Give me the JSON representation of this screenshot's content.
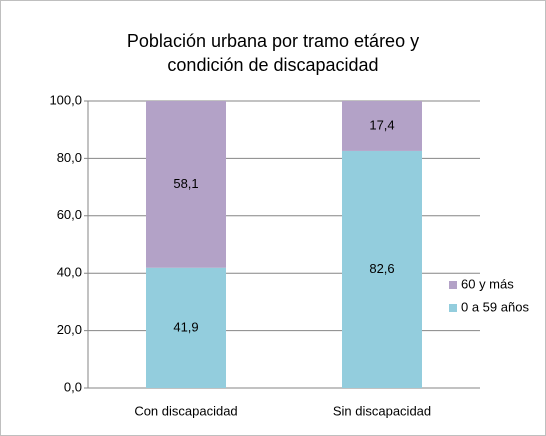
{
  "chart_data": {
    "type": "stacked_bar",
    "title": [
      "Población urbana por tramo etáreo y",
      "condición de discapacidad"
    ],
    "categories": [
      "Con discapacidad",
      "Sin discapacidad"
    ],
    "series": [
      {
        "name": "0 a 59 años",
        "color": "#93cddd",
        "values": [
          41.9,
          82.6
        ],
        "value_labels": [
          "41,9",
          "82,6"
        ]
      },
      {
        "name": "60 y más",
        "color": "#b3a2c7",
        "values": [
          58.1,
          17.4
        ],
        "value_labels": [
          "58,1",
          "17,4"
        ]
      }
    ],
    "ylim": [
      0,
      100
    ],
    "yticks": [
      {
        "value": 0,
        "label": "0,0"
      },
      {
        "value": 20,
        "label": "20,0"
      },
      {
        "value": 40,
        "label": "40,0"
      },
      {
        "value": 60,
        "label": "60,0"
      },
      {
        "value": 80,
        "label": "80,0"
      },
      {
        "value": 100,
        "label": "100,0"
      }
    ],
    "grid": true,
    "legend": "right"
  }
}
